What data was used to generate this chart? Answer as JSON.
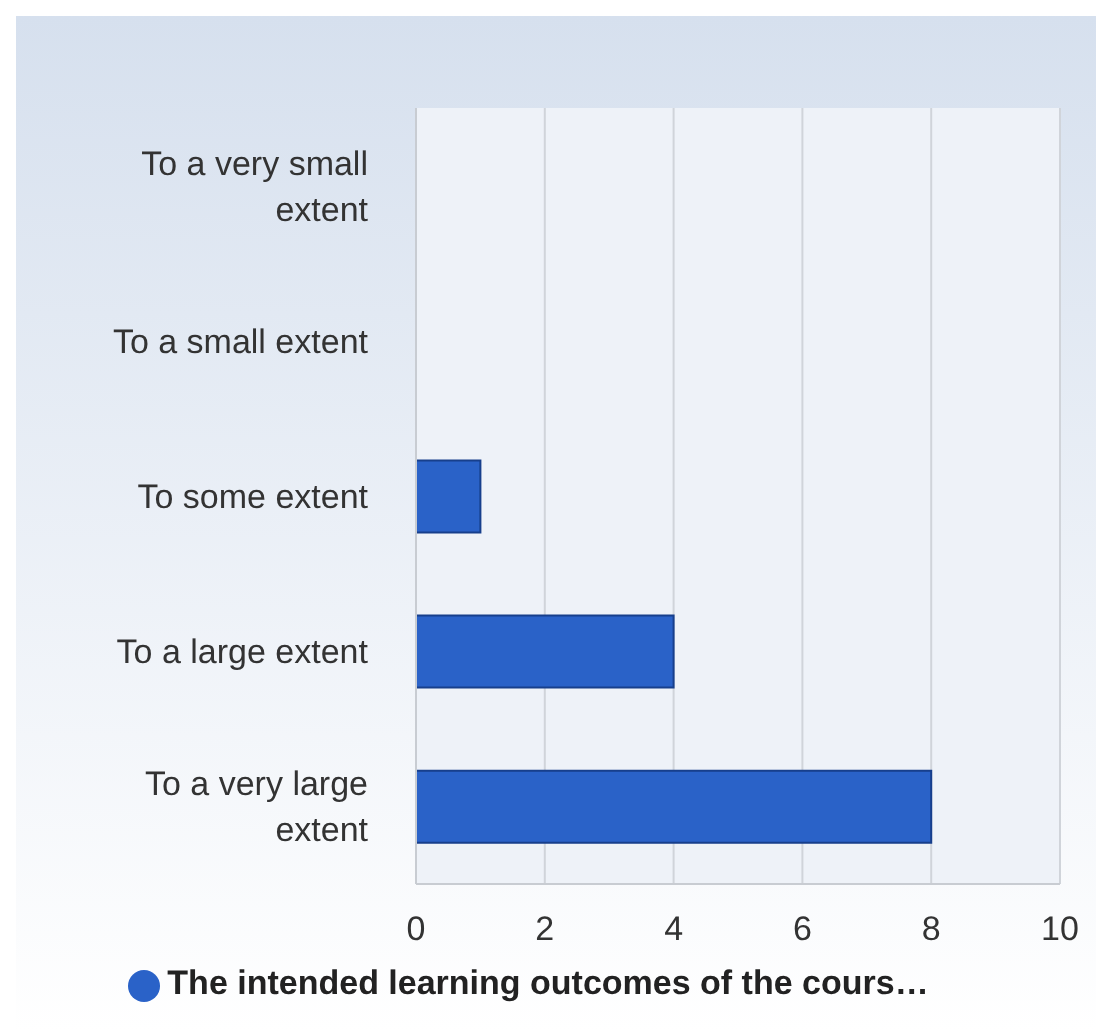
{
  "chart_data": {
    "type": "bar",
    "orientation": "horizontal",
    "categories": [
      "To a very small extent",
      "To a small extent",
      "To some extent",
      "To a large extent",
      "To a very large extent"
    ],
    "series": [
      {
        "name": "The intended learning outcomes of the cours…",
        "color": "#2a62c8",
        "values": [
          0,
          0,
          1,
          4,
          8
        ]
      }
    ],
    "xlim": [
      0,
      10
    ],
    "xticks": [
      0,
      2,
      4,
      6,
      8,
      10
    ],
    "grid": "x",
    "legend": "bottom"
  }
}
